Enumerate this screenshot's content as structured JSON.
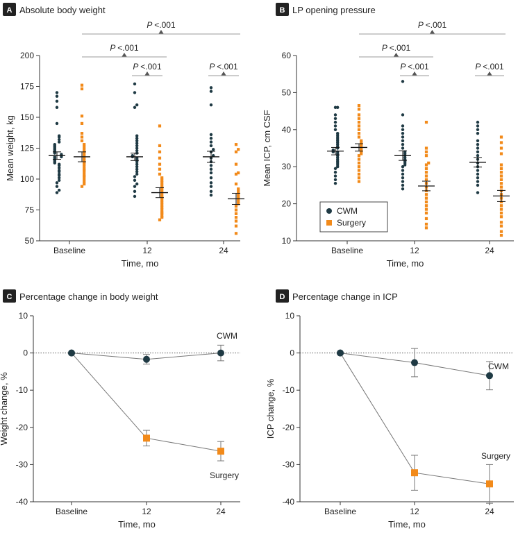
{
  "colors": {
    "cwm": "#1f3a44",
    "surgery": "#f28a1a",
    "bracket": "#9a9a9a",
    "axis": "#333333"
  },
  "legend": {
    "cwm": "CWM",
    "surgery": "Surgery"
  },
  "chart_data": [
    {
      "id": "A",
      "type": "scatter",
      "badge": "A",
      "title": "Absolute body weight",
      "xlabel": "Time, mo",
      "ylabel": "Mean weight, kg",
      "categories": [
        "Baseline",
        "12",
        "24"
      ],
      "ylim": [
        50,
        200
      ],
      "yticks": [
        50,
        75,
        100,
        125,
        150,
        175,
        200
      ],
      "series": [
        {
          "name": "CWM",
          "points": [
            [
              89,
              91,
              94,
              97,
              99,
              101,
              103,
              104,
              106,
              107,
              109,
              111,
              112,
              113,
              114,
              115,
              116,
              117,
              118,
              118,
              119,
              120,
              121,
              122,
              123,
              124,
              125,
              126,
              127,
              128,
              130,
              132,
              134,
              135,
              145,
              158,
              163,
              167,
              170
            ],
            [
              86,
              90,
              94,
              96,
              99,
              102,
              104,
              106,
              108,
              110,
              112,
              114,
              116,
              117,
              118,
              119,
              121,
              123,
              125,
              127,
              129,
              131,
              133,
              135,
              158,
              160,
              170,
              177
            ],
            [
              87,
              90,
              94,
              97,
              101,
              105,
              108,
              111,
              114,
              117,
              119,
              122,
              124,
              127,
              130,
              133,
              136,
              160,
              171,
              174
            ]
          ],
          "mean": [
            119,
            118,
            118
          ],
          "sem": [
            3,
            3,
            4.5
          ]
        },
        {
          "name": "Surgery",
          "points": [
            [
              94,
              96,
              98,
              100,
              102,
              103,
              105,
              107,
              108,
              110,
              112,
              113,
              115,
              117,
              118,
              120,
              122,
              124,
              126,
              128,
              131,
              134,
              137,
              145,
              151,
              173,
              176
            ],
            [
              67,
              69,
              70,
              72,
              73,
              75,
              77,
              79,
              81,
              83,
              85,
              86,
              88,
              90,
              92,
              93,
              95,
              97,
              99,
              101,
              104,
              108,
              112,
              117,
              122,
              127,
              143
            ],
            [
              56,
              62,
              66,
              69,
              72,
              75,
              78,
              80,
              82,
              84,
              86,
              88,
              90,
              92,
              96,
              104,
              105,
              112,
              122,
              124,
              128
            ]
          ],
          "mean": [
            118,
            89,
            84
          ],
          "sem": [
            4,
            4,
            4.5
          ]
        }
      ],
      "brackets": [
        {
          "from": 0,
          "to": 1,
          "label": "P <.001",
          "level": 2
        },
        {
          "from": 0,
          "to": 2,
          "label": "P <.001",
          "level": 3
        },
        {
          "from": 1,
          "to": 1,
          "label": "P <.001",
          "level": 1
        },
        {
          "from": 2,
          "to": 2,
          "label": "P <.001",
          "level": 1
        }
      ]
    },
    {
      "id": "B",
      "type": "scatter",
      "badge": "B",
      "title": "LP opening pressure",
      "xlabel": "Time, mo",
      "ylabel": "Mean ICP, cm CSF",
      "categories": [
        "Baseline",
        "12",
        "24"
      ],
      "ylim": [
        10,
        60
      ],
      "yticks": [
        10,
        20,
        30,
        40,
        50,
        60
      ],
      "series": [
        {
          "name": "CWM",
          "points": [
            [
              25.5,
              26.5,
              27.5,
              28.5,
              29.5,
              30,
              30.5,
              31,
              31.5,
              32,
              32.5,
              33,
              33.5,
              34,
              34,
              34.5,
              35,
              35.5,
              36,
              36.5,
              37,
              37.5,
              38,
              38.5,
              39,
              40,
              41,
              42,
              43,
              44,
              46,
              46
            ],
            [
              24,
              25,
              26,
              27,
              28,
              29,
              30,
              30.5,
              31,
              31.5,
              32,
              32.5,
              33,
              33.5,
              34,
              35,
              36,
              37,
              38,
              39,
              40,
              41,
              44,
              53
            ],
            [
              23,
              25,
              26,
              27,
              28,
              29,
              30,
              31,
              32,
              33,
              34,
              35,
              36,
              37,
              39,
              40,
              41,
              42
            ]
          ],
          "mean": [
            34.2,
            33,
            31.2
          ],
          "sem": [
            1,
            1.3,
            1.3
          ]
        },
        {
          "name": "Surgery",
          "points": [
            [
              26,
              27,
              28,
              29,
              30,
              31,
              32,
              33,
              33.5,
              34,
              34.5,
              35,
              35.5,
              36,
              36.5,
              37,
              38,
              39,
              40,
              41,
              42,
              43,
              44,
              45.5,
              46.5
            ],
            [
              13.5,
              14.5,
              16,
              17.5,
              18.5,
              19.5,
              20.5,
              21.5,
              22.5,
              23.5,
              24.5,
              25.5,
              26.5,
              27.5,
              28.5,
              29.5,
              30.5,
              31,
              33,
              34,
              35,
              42
            ],
            [
              11.5,
              12.5,
              14,
              15,
              16.5,
              17.5,
              18.5,
              19.5,
              20.5,
              21.5,
              22.5,
              23.5,
              24.5,
              25.5,
              26.5,
              27.5,
              28.5,
              29.5,
              30.5,
              33.5,
              35,
              36.5,
              38
            ]
          ],
          "mean": [
            35.2,
            24.8,
            22.1
          ],
          "sem": [
            1,
            1.3,
            1.5
          ]
        }
      ],
      "brackets": [
        {
          "from": 0,
          "to": 1,
          "label": "P <.001",
          "level": 2
        },
        {
          "from": 0,
          "to": 2,
          "label": "P <.001",
          "level": 3
        },
        {
          "from": 1,
          "to": 1,
          "label": "P <.001",
          "level": 1
        },
        {
          "from": 2,
          "to": 2,
          "label": "P <.001",
          "level": 1
        }
      ],
      "legend_position": "bottom-left"
    },
    {
      "id": "C",
      "type": "line",
      "badge": "C",
      "title": "Percentage change in body weight",
      "xlabel": "Time, mo",
      "ylabel": "Weight change, %",
      "categories": [
        "Baseline",
        "12",
        "24"
      ],
      "ylim": [
        -40,
        10
      ],
      "yticks": [
        -40,
        -30,
        -20,
        -10,
        0,
        10
      ],
      "series": [
        {
          "name": "CWM",
          "label": "CWM",
          "values": [
            0,
            -1.7,
            0
          ],
          "err": [
            0,
            1.3,
            2.1
          ]
        },
        {
          "name": "Surgery",
          "label": "Surgery",
          "values": [
            0,
            -22.9,
            -26.4
          ],
          "err": [
            0,
            2.1,
            2.6
          ]
        }
      ]
    },
    {
      "id": "D",
      "type": "line",
      "badge": "D",
      "title": "Percentage change in ICP",
      "xlabel": "Time, mo",
      "ylabel": "ICP change, %",
      "categories": [
        "Baseline",
        "12",
        "24"
      ],
      "ylim": [
        -40,
        10
      ],
      "yticks": [
        -40,
        -30,
        -20,
        -10,
        0,
        10
      ],
      "series": [
        {
          "name": "CWM",
          "label": "CWM",
          "values": [
            0,
            -2.6,
            -6.1
          ],
          "err": [
            0,
            3.8,
            3.8
          ]
        },
        {
          "name": "Surgery",
          "label": "Surgery",
          "values": [
            0,
            -32.2,
            -35.2
          ],
          "err": [
            0,
            4.7,
            5.2
          ]
        }
      ]
    }
  ]
}
